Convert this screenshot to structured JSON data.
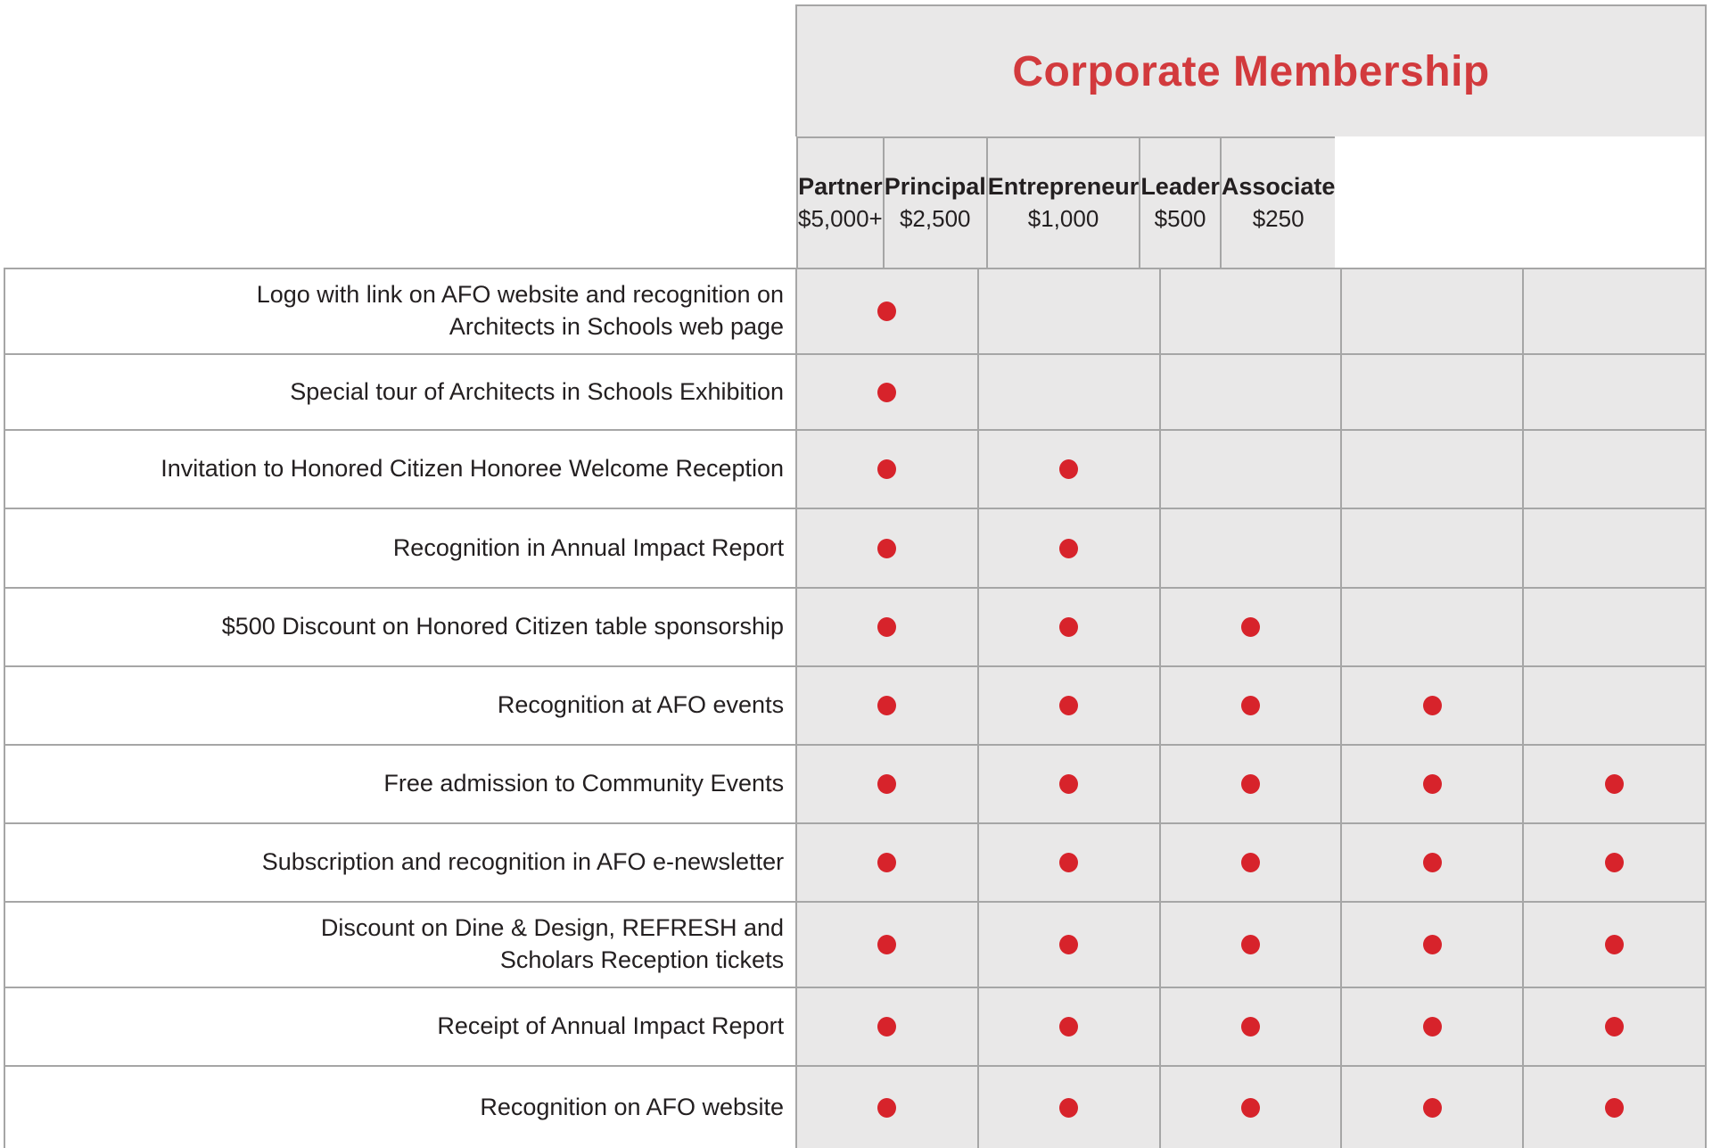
{
  "colors": {
    "title_red": "#d23a3d",
    "dot_red": "#d7232b",
    "cell_bg": "#e9e8e8",
    "grid_line": "#a6a6a6",
    "label_text": "#231f20"
  },
  "chart_data": {
    "type": "table",
    "title": "Corporate Membership",
    "legend_note": "red dot = benefit included in tier",
    "tiers": [
      {
        "name": "Partner",
        "price": "$5,000+"
      },
      {
        "name": "Principal",
        "price": "$2,500"
      },
      {
        "name": "Entrepreneur",
        "price": "$1,000"
      },
      {
        "name": "Leader",
        "price": "$500"
      },
      {
        "name": "Associate",
        "price": "$250"
      }
    ],
    "rows": [
      {
        "label": "Logo with link on AFO website and recognition on\nArchitects in Schools web page",
        "included": [
          true,
          false,
          false,
          false,
          false
        ]
      },
      {
        "label": "Special tour of Architects in Schools Exhibition",
        "included": [
          true,
          false,
          false,
          false,
          false
        ]
      },
      {
        "label": "Invitation to Honored Citizen Honoree Welcome Reception",
        "included": [
          true,
          true,
          false,
          false,
          false
        ]
      },
      {
        "label": "Recognition in Annual Impact Report",
        "included": [
          true,
          true,
          false,
          false,
          false
        ]
      },
      {
        "label": "$500 Discount on Honored Citizen table sponsorship",
        "included": [
          true,
          true,
          true,
          false,
          false
        ]
      },
      {
        "label": "Recognition at AFO events",
        "included": [
          true,
          true,
          true,
          true,
          false
        ]
      },
      {
        "label": "Free admission to Community Events",
        "included": [
          true,
          true,
          true,
          true,
          true
        ]
      },
      {
        "label": "Subscription and recognition in AFO e-newsletter",
        "included": [
          true,
          true,
          true,
          true,
          true
        ]
      },
      {
        "label": "Discount on Dine & Design, REFRESH and\nScholars Reception tickets",
        "included": [
          true,
          true,
          true,
          true,
          true
        ]
      },
      {
        "label": "Receipt of Annual Impact Report",
        "included": [
          true,
          true,
          true,
          true,
          true
        ]
      },
      {
        "label": "Recognition on AFO website",
        "included": [
          true,
          true,
          true,
          true,
          true
        ]
      }
    ]
  }
}
